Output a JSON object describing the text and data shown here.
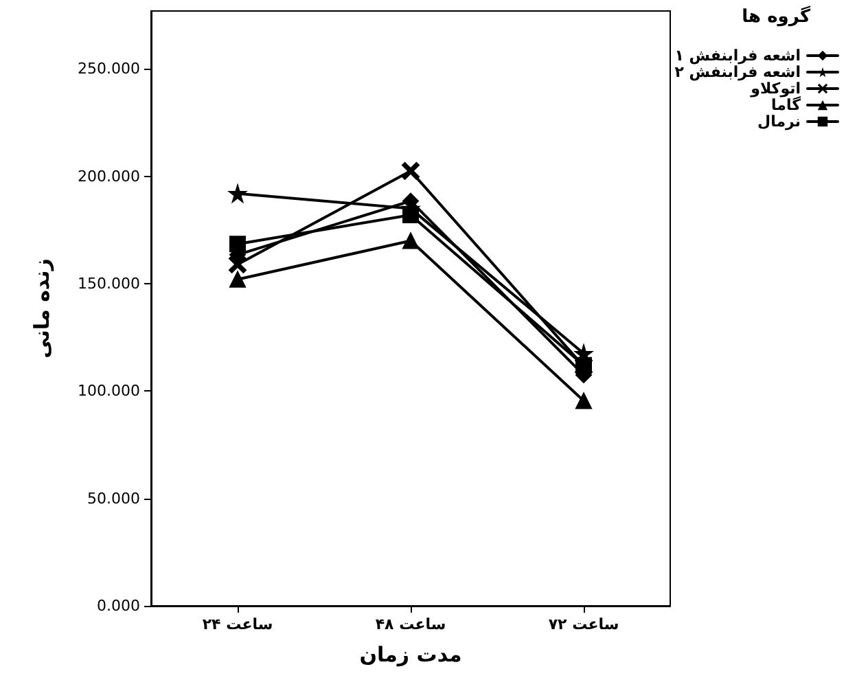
{
  "chart_data": {
    "type": "line",
    "xlabel": "مدت زمان",
    "ylabel": "زنده مانی",
    "legend_title": "گروه ها",
    "legend": "top right",
    "categories": [
      "۲۴ ساعت",
      "۴۸ ساعت",
      "۷۲ ساعت"
    ],
    "series": [
      {
        "name": "اشعه فرابنفش ۱",
        "color": "#000000",
        "marker": "diamond",
        "values": [
          163.5,
          188.5,
          107.5
        ]
      },
      {
        "name": "اشعه فرابنفش ۲",
        "color": "#000000",
        "marker": "star",
        "values": [
          192,
          185,
          117.5
        ]
      },
      {
        "name": "اتوکلاو",
        "color": "#000000",
        "marker": "cross",
        "values": [
          159,
          202.5,
          111.5
        ]
      },
      {
        "name": "گاما",
        "color": "#000000",
        "marker": "triangle",
        "values": [
          152,
          170,
          95.5
        ]
      },
      {
        "name": "نرمال",
        "color": "#000000",
        "marker": "square",
        "values": [
          168.5,
          182,
          112
        ]
      }
    ],
    "ylim": [
      0,
      277
    ],
    "yticks": [
      {
        "value": 0,
        "label": "0.000"
      },
      {
        "value": 50,
        "label": "50.000"
      },
      {
        "value": 100,
        "label": "100.000"
      },
      {
        "value": 150,
        "label": "150.000"
      },
      {
        "value": 200,
        "label": "200.000"
      },
      {
        "value": 250,
        "label": "250.000"
      }
    ],
    "grid": false,
    "line_style": "solid"
  }
}
